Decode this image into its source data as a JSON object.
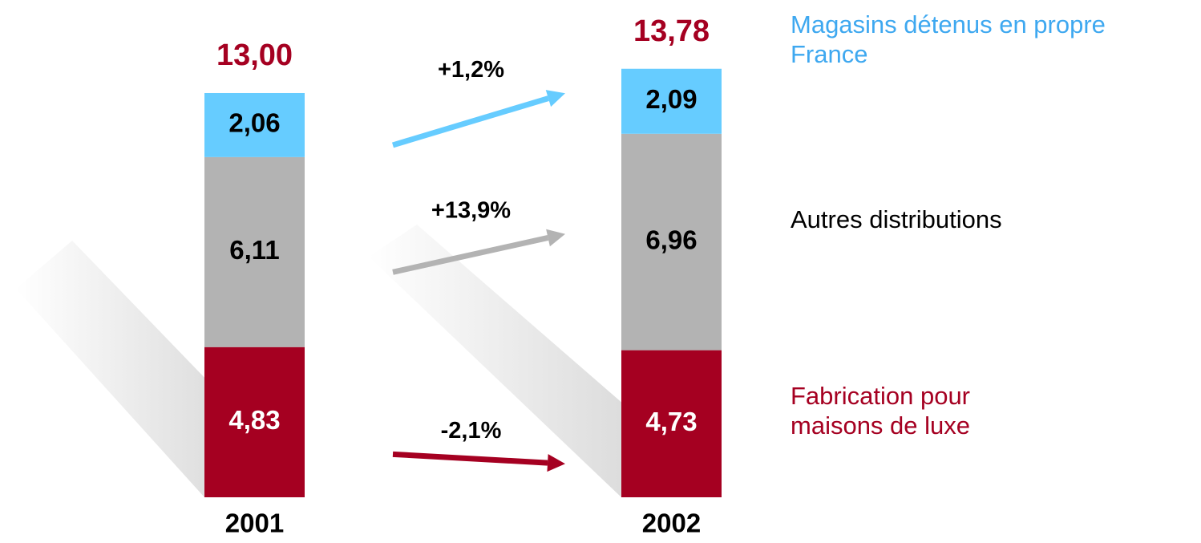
{
  "chart_data": {
    "type": "stacked_bar",
    "categories": [
      "2001",
      "2002"
    ],
    "series": [
      {
        "name": "Fabrication pour maisons de luxe",
        "color": "#a50021",
        "values": [
          4.83,
          4.73
        ],
        "value_labels": [
          "4,83",
          "4,73"
        ],
        "change": "-2,1%"
      },
      {
        "name": "Autres distributions",
        "color": "#b3b3b3",
        "values": [
          6.11,
          6.96
        ],
        "value_labels": [
          "6,11",
          "6,96"
        ],
        "change": "+13,9%"
      },
      {
        "name": "Magasins détenus en propre France",
        "color": "#66ccff",
        "values": [
          2.06,
          2.09
        ],
        "value_labels": [
          "2,06",
          "2,09"
        ],
        "change": "+1,2%"
      }
    ],
    "totals": [
      13.0,
      13.78
    ],
    "total_labels": [
      "13,00",
      "13,78"
    ],
    "total_color": "#a50021"
  }
}
